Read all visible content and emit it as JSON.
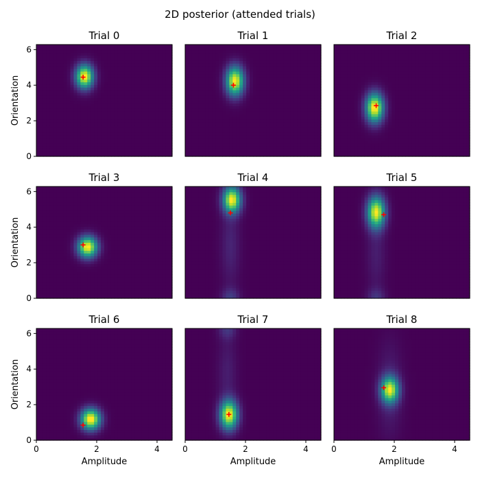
{
  "chart_data": {
    "type": "heatmap",
    "title": "2D posterior (attended trials)",
    "xlabel": "Amplitude",
    "ylabel": "Orientation",
    "xlim": [
      0,
      4.5
    ],
    "ylim": [
      0,
      6.283
    ],
    "xticks": [
      0,
      2,
      4
    ],
    "yticks": [
      0,
      2,
      4,
      6
    ],
    "colormap": "viridis",
    "marker_color": "#ff0000",
    "marker_label": "+",
    "panels": [
      {
        "title": "Trial 0",
        "marker": [
          1.55,
          4.45
        ],
        "modes": [
          {
            "x": 1.6,
            "y": 4.5,
            "sx": 0.2,
            "sy": 0.45,
            "w": 1.0
          }
        ]
      },
      {
        "title": "Trial 1",
        "marker": [
          1.6,
          4.0
        ],
        "modes": [
          {
            "x": 1.65,
            "y": 4.25,
            "sx": 0.2,
            "sy": 0.55,
            "w": 1.0
          }
        ]
      },
      {
        "title": "Trial 2",
        "marker": [
          1.4,
          2.85
        ],
        "modes": [
          {
            "x": 1.35,
            "y": 2.75,
            "sx": 0.2,
            "sy": 0.55,
            "w": 1.0
          }
        ]
      },
      {
        "title": "Trial 3",
        "marker": [
          1.55,
          3.0
        ],
        "modes": [
          {
            "x": 1.7,
            "y": 2.9,
            "sx": 0.22,
            "sy": 0.4,
            "w": 1.0
          }
        ]
      },
      {
        "title": "Trial 4",
        "marker": [
          1.5,
          4.8
        ],
        "modes": [
          {
            "x": 1.55,
            "y": 5.55,
            "sx": 0.2,
            "sy": 0.5,
            "w": 1.0
          },
          {
            "x": 1.5,
            "y": 0.0,
            "sx": 0.2,
            "sy": 0.4,
            "w": 0.18
          },
          {
            "x": 1.5,
            "y": 3.0,
            "sx": 0.22,
            "sy": 1.6,
            "w": 0.1
          }
        ]
      },
      {
        "title": "Trial 5",
        "marker": [
          1.65,
          4.7
        ],
        "modes": [
          {
            "x": 1.4,
            "y": 4.85,
            "sx": 0.2,
            "sy": 0.6,
            "w": 1.0
          },
          {
            "x": 1.4,
            "y": 0.0,
            "sx": 0.2,
            "sy": 0.4,
            "w": 0.15
          },
          {
            "x": 1.4,
            "y": 2.5,
            "sx": 0.22,
            "sy": 1.5,
            "w": 0.08
          }
        ]
      },
      {
        "title": "Trial 6",
        "marker": [
          1.55,
          0.85
        ],
        "modes": [
          {
            "x": 1.8,
            "y": 1.2,
            "sx": 0.22,
            "sy": 0.4,
            "w": 1.0
          }
        ]
      },
      {
        "title": "Trial 7",
        "marker": [
          1.45,
          1.45
        ],
        "modes": [
          {
            "x": 1.45,
            "y": 1.45,
            "sx": 0.2,
            "sy": 0.55,
            "w": 1.0
          },
          {
            "x": 1.4,
            "y": 6.28,
            "sx": 0.2,
            "sy": 0.4,
            "w": 0.15
          },
          {
            "x": 1.4,
            "y": 3.8,
            "sx": 0.22,
            "sy": 1.5,
            "w": 0.08
          }
        ]
      },
      {
        "title": "Trial 8",
        "marker": [
          1.65,
          2.95
        ],
        "modes": [
          {
            "x": 1.85,
            "y": 2.85,
            "sx": 0.2,
            "sy": 0.5,
            "w": 1.0
          },
          {
            "x": 1.85,
            "y": 2.85,
            "sx": 0.28,
            "sy": 1.8,
            "w": 0.1
          }
        ]
      }
    ]
  }
}
